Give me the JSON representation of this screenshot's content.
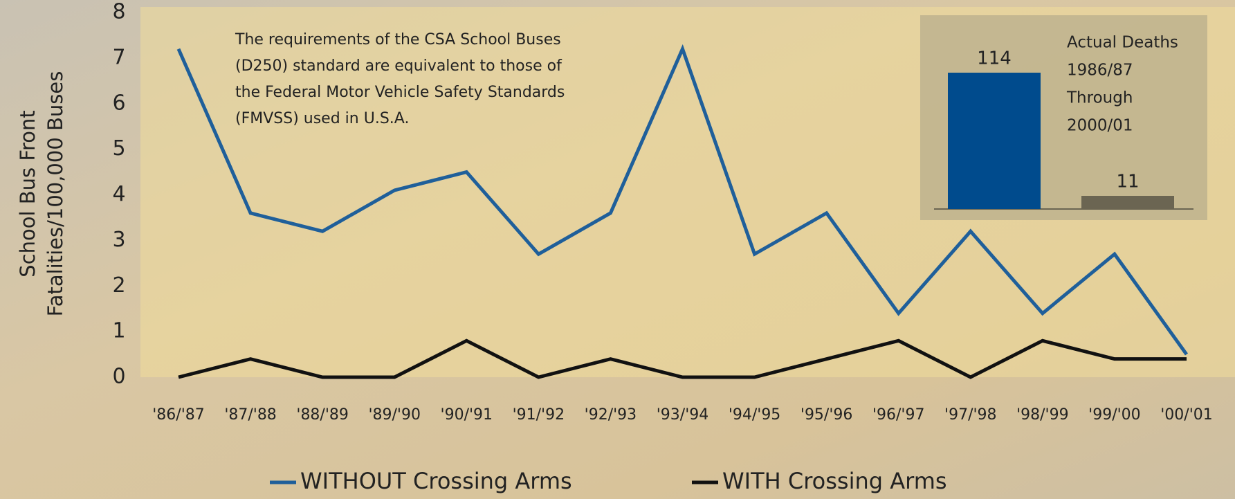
{
  "chart_data": [
    {
      "type": "line",
      "annotation": [
        "The requirements of the CSA School Buses",
        "(D250) standard are equivalent to those of",
        "the Federal Motor Vehicle Safety Standards",
        "(FMVSS) used in U.S.A."
      ],
      "ylabel": [
        "School Bus Front",
        "Fatalities/100,000 Buses"
      ],
      "categories": [
        "'86/'87",
        "'87/'88",
        "'88/'89",
        "'89/'90",
        "'90/'91",
        "'91/'92",
        "'92/'93",
        "'93/'94",
        "'94/'95",
        "'95/'96",
        "'96/'97",
        "'97/'98",
        "'98/'99",
        "'99/'00",
        "'00/'01"
      ],
      "series": [
        {
          "name": "WITHOUT Crossing Arms",
          "color": "#1f5f9a",
          "values": [
            7.2,
            3.6,
            3.2,
            4.1,
            4.5,
            2.7,
            3.6,
            7.2,
            2.7,
            3.6,
            1.4,
            3.2,
            1.4,
            2.7,
            0.5
          ]
        },
        {
          "name": "WITH Crossing Arms",
          "color": "#111111",
          "values": [
            0,
            0.4,
            0,
            0,
            0.8,
            0,
            0.4,
            0,
            0,
            0.4,
            0.8,
            0,
            0.8,
            0.4,
            0.4
          ]
        }
      ],
      "ylim": [
        0,
        8
      ],
      "yticks": [
        0,
        1,
        2,
        3,
        4,
        5,
        6,
        7,
        8
      ]
    },
    {
      "type": "bar",
      "title": [
        "Actual Deaths",
        "1986/87",
        "Through",
        "2000/01"
      ],
      "categories": [
        null,
        null
      ],
      "values": [
        114,
        11
      ],
      "colors": [
        "#004b8d",
        "#6b6552"
      ]
    }
  ]
}
